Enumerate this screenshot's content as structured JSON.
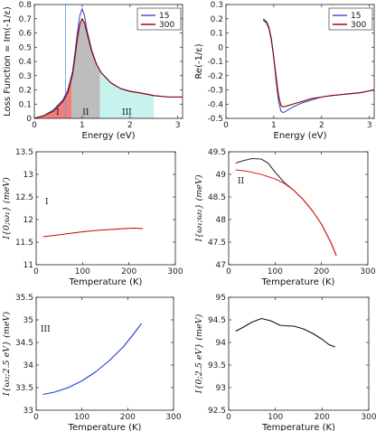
{
  "figure": {
    "legend_labels": [
      "15",
      "300"
    ]
  },
  "chart_data": [
    {
      "id": "loss",
      "type": "line",
      "xlabel": "Energy (eV)",
      "ylabel": "Loss Function = Im(-1/ε)",
      "xlim": [
        0,
        3.1
      ],
      "ylim": [
        0,
        0.8
      ],
      "xticks": [
        0,
        1,
        2,
        3
      ],
      "yticks": [
        0,
        0.1,
        0.2,
        0.3,
        0.4,
        0.5,
        0.6,
        0.7,
        0.8
      ],
      "legend": "top-right",
      "vline": 0.65,
      "regions": [
        {
          "label": "I",
          "x": [
            0.0,
            0.78
          ],
          "color": "#f08080"
        },
        {
          "label": "II",
          "x": [
            0.78,
            1.37
          ],
          "color": "#bdbdbd"
        },
        {
          "label": "III",
          "x": [
            1.37,
            2.5
          ],
          "color": "#c6f3ee"
        }
      ],
      "series": [
        {
          "name": "15",
          "color": "#3b4cc0",
          "x": [
            0.0,
            0.2,
            0.4,
            0.6,
            0.7,
            0.8,
            0.85,
            0.9,
            0.95,
            1.0,
            1.05,
            1.1,
            1.2,
            1.3,
            1.4,
            1.6,
            1.8,
            2.0,
            2.2,
            2.5,
            2.8,
            3.1
          ],
          "y": [
            0.0,
            0.02,
            0.06,
            0.13,
            0.2,
            0.33,
            0.46,
            0.6,
            0.72,
            0.77,
            0.72,
            0.62,
            0.48,
            0.38,
            0.32,
            0.25,
            0.21,
            0.19,
            0.18,
            0.16,
            0.15,
            0.15
          ]
        },
        {
          "name": "300",
          "color": "#8b0000",
          "x": [
            0.0,
            0.2,
            0.4,
            0.6,
            0.7,
            0.8,
            0.85,
            0.9,
            0.95,
            1.0,
            1.05,
            1.1,
            1.2,
            1.3,
            1.4,
            1.6,
            1.8,
            2.0,
            2.2,
            2.5,
            2.8,
            3.1
          ],
          "y": [
            0.0,
            0.02,
            0.05,
            0.12,
            0.18,
            0.31,
            0.43,
            0.56,
            0.66,
            0.7,
            0.67,
            0.6,
            0.47,
            0.38,
            0.32,
            0.25,
            0.21,
            0.19,
            0.18,
            0.16,
            0.15,
            0.15
          ]
        }
      ]
    },
    {
      "id": "re",
      "type": "line",
      "xlabel": "Energy (eV)",
      "ylabel": "Re(-1/ε)",
      "xlim": [
        0,
        3.1
      ],
      "ylim": [
        -0.5,
        0.3
      ],
      "xticks": [
        0,
        1,
        2,
        3
      ],
      "yticks": [
        -0.5,
        -0.4,
        -0.3,
        -0.2,
        -0.1,
        0,
        0.1,
        0.2,
        0.3
      ],
      "legend": "top-right",
      "series": [
        {
          "name": "15",
          "color": "#3b4cc0",
          "x": [
            0.78,
            0.85,
            0.9,
            0.95,
            1.0,
            1.05,
            1.1,
            1.15,
            1.2,
            1.3,
            1.4,
            1.6,
            1.8,
            2.0,
            2.2,
            2.5,
            2.8,
            3.1
          ],
          "y": [
            0.2,
            0.18,
            0.14,
            0.06,
            -0.08,
            -0.24,
            -0.38,
            -0.45,
            -0.46,
            -0.44,
            -0.42,
            -0.39,
            -0.37,
            -0.35,
            -0.34,
            -0.33,
            -0.32,
            -0.3
          ]
        },
        {
          "name": "300",
          "color": "#8b0000",
          "x": [
            0.78,
            0.85,
            0.9,
            0.95,
            1.0,
            1.05,
            1.1,
            1.15,
            1.2,
            1.3,
            1.4,
            1.6,
            1.8,
            2.0,
            2.2,
            2.5,
            2.8,
            3.1
          ],
          "y": [
            0.19,
            0.17,
            0.13,
            0.05,
            -0.07,
            -0.21,
            -0.34,
            -0.41,
            -0.42,
            -0.41,
            -0.4,
            -0.38,
            -0.36,
            -0.35,
            -0.34,
            -0.33,
            -0.32,
            -0.3
          ]
        }
      ]
    },
    {
      "id": "I",
      "type": "line",
      "xlabel": "Temperature (K)",
      "ylabel": "I{0;ω₁} (meV)",
      "annotation": "I",
      "xlim": [
        0,
        300
      ],
      "ylim": [
        11,
        13.5
      ],
      "xticks": [
        0,
        100,
        200,
        300
      ],
      "yticks": [
        11,
        11.5,
        12,
        12.5,
        13,
        13.5
      ],
      "series": [
        {
          "color": "#cc0000",
          "x": [
            15,
            40,
            70,
            100,
            130,
            160,
            190,
            210,
            230
          ],
          "y": [
            11.62,
            11.65,
            11.69,
            11.73,
            11.76,
            11.78,
            11.8,
            11.81,
            11.8
          ]
        }
      ]
    },
    {
      "id": "II",
      "type": "line",
      "xlabel": "Temperature (K)",
      "ylabel": "I{ω₁;ω₂} (meV)",
      "annotation": "II",
      "xlim": [
        0,
        300
      ],
      "ylim": [
        47,
        49.5
      ],
      "xticks": [
        0,
        100,
        200,
        300
      ],
      "yticks": [
        47,
        47.5,
        48,
        48.5,
        49,
        49.5
      ],
      "series": [
        {
          "color": "#333333",
          "x": [
            15,
            30,
            50,
            70,
            85,
            100,
            120,
            140,
            160,
            180,
            200,
            220,
            232
          ],
          "y": [
            49.25,
            49.3,
            49.35,
            49.34,
            49.25,
            49.05,
            48.82,
            48.65,
            48.45,
            48.2,
            47.9,
            47.5,
            47.2
          ]
        },
        {
          "color": "#dd2222",
          "x": [
            15,
            40,
            70,
            100,
            120,
            140,
            160,
            180,
            200,
            220,
            232
          ],
          "y": [
            49.1,
            49.07,
            49.0,
            48.9,
            48.8,
            48.65,
            48.45,
            48.2,
            47.9,
            47.5,
            47.2
          ]
        }
      ]
    },
    {
      "id": "III",
      "type": "line",
      "xlabel": "Temperature (K)",
      "ylabel": "I{ω₂;2.5 eV} (meV)",
      "annotation": "III",
      "xlim": [
        0,
        300
      ],
      "ylim": [
        33,
        35.5
      ],
      "xticks": [
        0,
        100,
        200,
        300
      ],
      "yticks": [
        33,
        33.5,
        34,
        34.5,
        35,
        35.5
      ],
      "series": [
        {
          "color": "#1a3fcc",
          "x": [
            15,
            40,
            70,
            100,
            130,
            160,
            190,
            210,
            230
          ],
          "y": [
            33.35,
            33.4,
            33.5,
            33.65,
            33.85,
            34.1,
            34.4,
            34.65,
            34.92
          ]
        }
      ]
    },
    {
      "id": "IV",
      "type": "line",
      "xlabel": "Temperature (K)",
      "ylabel": "I{0;2.5 eV} (meV)",
      "xlim": [
        0,
        300
      ],
      "ylim": [
        92.5,
        95
      ],
      "xticks": [
        0,
        100,
        200,
        300
      ],
      "yticks": [
        92.5,
        93,
        93.5,
        94,
        94.5,
        95
      ],
      "series": [
        {
          "color": "#111111",
          "x": [
            15,
            30,
            50,
            70,
            90,
            110,
            120,
            140,
            160,
            180,
            200,
            215,
            228
          ],
          "y": [
            94.25,
            94.33,
            94.45,
            94.53,
            94.48,
            94.38,
            94.37,
            94.36,
            94.3,
            94.2,
            94.07,
            93.95,
            93.9
          ]
        }
      ]
    }
  ]
}
